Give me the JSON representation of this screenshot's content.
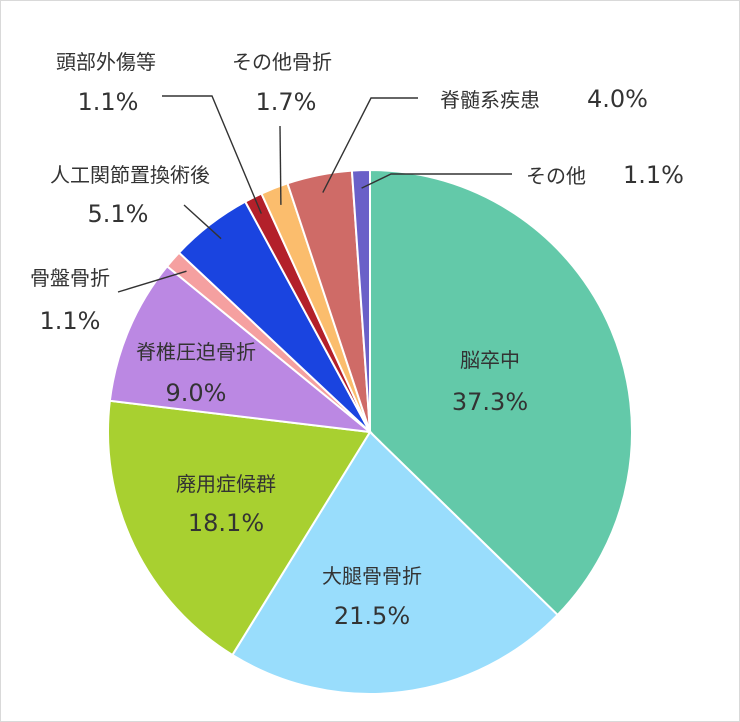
{
  "chart_data": {
    "type": "pie",
    "title": "",
    "start_angle_deg": 0,
    "direction": "clockwise",
    "slices": [
      {
        "label": "脳卒中",
        "percent_text": "37.3%",
        "value": 37.3,
        "color": "#63c9a9"
      },
      {
        "label": "大腿骨骨折",
        "percent_text": "21.5%",
        "value": 21.5,
        "color": "#99ddfc"
      },
      {
        "label": "廃用症候群",
        "percent_text": "18.1%",
        "value": 18.1,
        "color": "#a8d030"
      },
      {
        "label": "脊椎圧迫骨折",
        "percent_text": "9.0%",
        "value": 9.0,
        "color": "#bb88e3"
      },
      {
        "label": "骨盤骨折",
        "percent_text": "1.1%",
        "value": 1.1,
        "color": "#f5a0a0"
      },
      {
        "label": "人工関節置換術後",
        "percent_text": "5.1%",
        "value": 5.1,
        "color": "#1a44e0"
      },
      {
        "label": "頭部外傷等",
        "percent_text": "1.1%",
        "value": 1.1,
        "color": "#b3202a"
      },
      {
        "label": "その他骨折",
        "percent_text": "1.7%",
        "value": 1.7,
        "color": "#fbbd6d"
      },
      {
        "label": "脊髄系疾患",
        "percent_text": "4.0%",
        "value": 4.0,
        "color": "#cf6b67"
      },
      {
        "label": "その他",
        "percent_text": "1.1%",
        "value": 1.1,
        "color": "#6a60c8"
      }
    ]
  }
}
